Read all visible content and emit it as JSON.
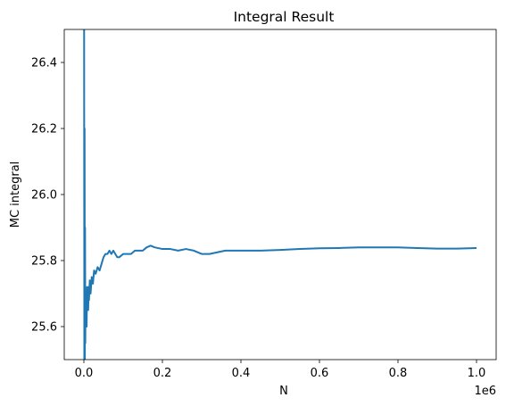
{
  "chart_data": {
    "type": "line",
    "title": "Integral Result",
    "xlabel": "N",
    "ylabel": "MC integral",
    "x_offset_text": "1e6",
    "xlim": [
      -0.05,
      1.05
    ],
    "ylim": [
      25.5,
      26.5
    ],
    "x_ticks": [
      0.0,
      0.2,
      0.4,
      0.6,
      0.8,
      1.0
    ],
    "x_tick_labels": [
      "0.0",
      "0.2",
      "0.4",
      "0.6",
      "0.8",
      "1.0"
    ],
    "y_ticks": [
      25.6,
      25.8,
      26.0,
      26.2,
      26.4
    ],
    "y_tick_labels": [
      "25.6",
      "25.8",
      "26.0",
      "26.2",
      "26.4"
    ],
    "grid": false,
    "series": [
      {
        "color": "#1f77b4",
        "x": [
          0.0,
          0.0006,
          0.0012,
          0.0018,
          0.0024,
          0.003,
          0.0036,
          0.0042,
          0.005,
          0.006,
          0.007,
          0.008,
          0.009,
          0.01,
          0.011,
          0.012,
          0.013,
          0.015,
          0.017,
          0.02,
          0.023,
          0.026,
          0.03,
          0.035,
          0.04,
          0.045,
          0.05,
          0.055,
          0.06,
          0.065,
          0.07,
          0.075,
          0.08,
          0.085,
          0.09,
          0.1,
          0.11,
          0.12,
          0.13,
          0.14,
          0.15,
          0.16,
          0.17,
          0.18,
          0.2,
          0.22,
          0.24,
          0.26,
          0.28,
          0.3,
          0.32,
          0.34,
          0.36,
          0.38,
          0.4,
          0.45,
          0.5,
          0.55,
          0.6,
          0.65,
          0.7,
          0.75,
          0.8,
          0.85,
          0.9,
          0.95,
          1.0
        ],
        "y": [
          26.6,
          26.55,
          25.4,
          26.2,
          25.5,
          25.9,
          25.55,
          25.7,
          25.62,
          25.68,
          25.6,
          25.72,
          25.66,
          25.7,
          25.65,
          25.72,
          25.68,
          25.74,
          25.7,
          25.75,
          25.73,
          25.77,
          25.76,
          25.78,
          25.77,
          25.79,
          25.81,
          25.82,
          25.82,
          25.83,
          25.82,
          25.83,
          25.82,
          25.81,
          25.81,
          25.82,
          25.82,
          25.82,
          25.83,
          25.83,
          25.83,
          25.84,
          25.845,
          25.84,
          25.835,
          25.835,
          25.83,
          25.835,
          25.83,
          25.82,
          25.82,
          25.825,
          25.83,
          25.83,
          25.83,
          25.83,
          25.832,
          25.835,
          25.837,
          25.838,
          25.84,
          25.84,
          25.84,
          25.838,
          25.836,
          25.836,
          25.838
        ]
      }
    ]
  }
}
